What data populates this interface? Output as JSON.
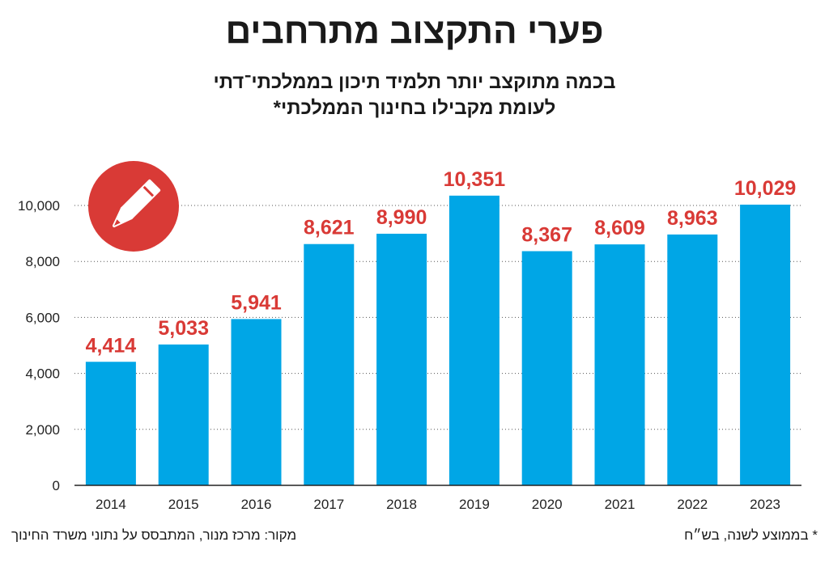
{
  "title": "פערי התקצוב מתרחבים",
  "subtitle": {
    "line1": "בכמה מתוקצב יותר תלמיד תיכון בממלכתי־דתי",
    "line2": "לעומת מקבילו בחינוך הממלכתי*"
  },
  "source": "מקור: מרכז מנור, המתבסס על נתוני משרד החינוך",
  "note": "* בממוצע לשנה, בש״ח",
  "icon": "pencil-icon",
  "colors": {
    "bar": "#00a6e6",
    "value_label": "#d93a36",
    "icon_circle": "#d93a36"
  },
  "chart_data": {
    "type": "bar",
    "title": "פערי התקצוב מתרחבים",
    "xlabel": "",
    "ylabel": "",
    "categories": [
      "2014",
      "2015",
      "2016",
      "2017",
      "2018",
      "2019",
      "2020",
      "2021",
      "2022",
      "2023"
    ],
    "values": [
      4414,
      5033,
      5941,
      8621,
      8990,
      10351,
      8367,
      8609,
      8963,
      10029
    ],
    "value_labels": [
      "4,414",
      "5,033",
      "5,941",
      "8,621",
      "8,990",
      "10,351",
      "8,367",
      "8,609",
      "8,963",
      "10,029"
    ],
    "ylim": [
      0,
      10000
    ],
    "yticks": [
      0,
      2000,
      4000,
      6000,
      8000,
      10000
    ],
    "ytick_labels": [
      "0",
      "2,000",
      "4,000",
      "6,000",
      "8,000",
      "10,000"
    ],
    "grid": true
  }
}
